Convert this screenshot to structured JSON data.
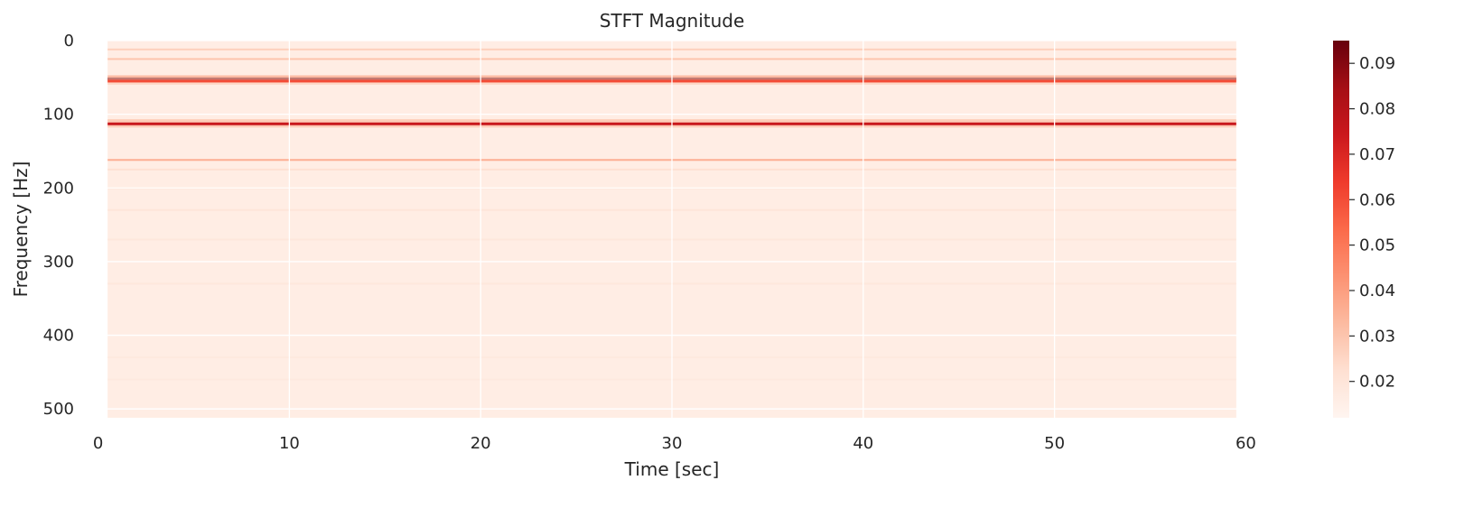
{
  "chart_data": {
    "type": "heatmap",
    "title": "STFT Magnitude",
    "xlabel": "Time [sec]",
    "ylabel": "Frequency [Hz]",
    "xlim": [
      -0.5,
      60.5
    ],
    "ylim": [
      512,
      0
    ],
    "y_inverted": true,
    "grid": true,
    "colormap": "Reds",
    "x_ticks": [
      0,
      10,
      20,
      30,
      40,
      50,
      60
    ],
    "y_ticks": [
      0,
      100,
      200,
      300,
      400,
      500
    ],
    "colorbar": {
      "min": 0.012,
      "max": 0.095,
      "ticks": [
        0.02,
        0.03,
        0.04,
        0.05,
        0.06,
        0.07,
        0.08,
        0.09
      ],
      "tick_labels": [
        "0.02",
        "0.03",
        "0.04",
        "0.05",
        "0.06",
        "0.07",
        "0.08",
        "0.09"
      ]
    },
    "time_extent": [
      0.5,
      59.5
    ],
    "background_magnitude": 0.016,
    "bands": [
      {
        "freq": 12,
        "magnitude": 0.027
      },
      {
        "freq": 25,
        "magnitude": 0.03
      },
      {
        "freq": 52,
        "magnitude": 0.094
      },
      {
        "freq": 55,
        "magnitude": 0.06
      },
      {
        "freq": 113,
        "magnitude": 0.075
      },
      {
        "freq": 108,
        "magnitude": 0.028
      },
      {
        "freq": 162,
        "magnitude": 0.036
      },
      {
        "freq": 175,
        "magnitude": 0.022
      },
      {
        "freq": 200,
        "magnitude": 0.02
      },
      {
        "freq": 230,
        "magnitude": 0.02
      },
      {
        "freq": 270,
        "magnitude": 0.019
      },
      {
        "freq": 330,
        "magnitude": 0.019
      },
      {
        "freq": 430,
        "magnitude": 0.018
      },
      {
        "freq": 460,
        "magnitude": 0.018
      }
    ]
  }
}
